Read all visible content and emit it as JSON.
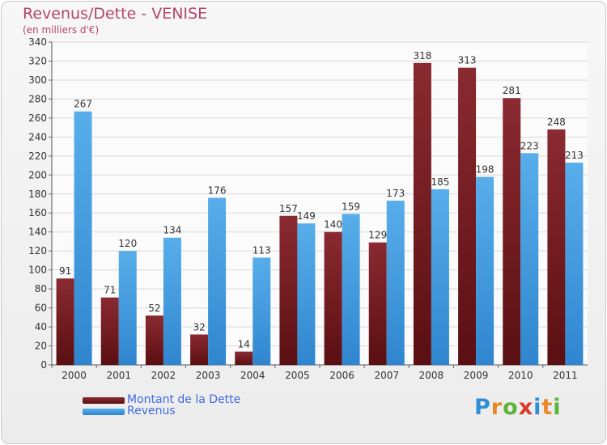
{
  "title": "Revenus/Dette - VENISE",
  "subtitle": "(en milliers d'€)",
  "logo": {
    "letters": [
      "P",
      "r",
      "o",
      "x",
      "i",
      "t",
      "i"
    ],
    "colors": [
      "#2e8fd6",
      "#e8892b",
      "#5bb33a",
      "#d93a2b",
      "#2e8fd6",
      "#e8892b",
      "#5bb33a"
    ]
  },
  "chart_data": {
    "type": "bar",
    "title": "Revenus/Dette - VENISE",
    "subtitle": "(en milliers d'€)",
    "xlabel": "",
    "ylabel": "",
    "categories": [
      "2000",
      "2001",
      "2002",
      "2003",
      "2004",
      "2005",
      "2006",
      "2007",
      "2008",
      "2009",
      "2010",
      "2011"
    ],
    "series": [
      {
        "name": "Montant de la Dette",
        "color": "#7a1f24",
        "values": [
          91,
          71,
          52,
          32,
          14,
          157,
          140,
          129,
          318,
          313,
          281,
          248
        ]
      },
      {
        "name": "Revenus",
        "color": "#4aa3e4",
        "values": [
          267,
          120,
          134,
          176,
          113,
          149,
          159,
          173,
          185,
          198,
          223,
          213
        ]
      }
    ],
    "ylim": [
      0,
      340
    ],
    "yticks": [
      0,
      20,
      40,
      60,
      80,
      100,
      120,
      140,
      160,
      180,
      200,
      220,
      240,
      260,
      280,
      300,
      320,
      340
    ],
    "grid": true,
    "legend": "bottom-left"
  }
}
